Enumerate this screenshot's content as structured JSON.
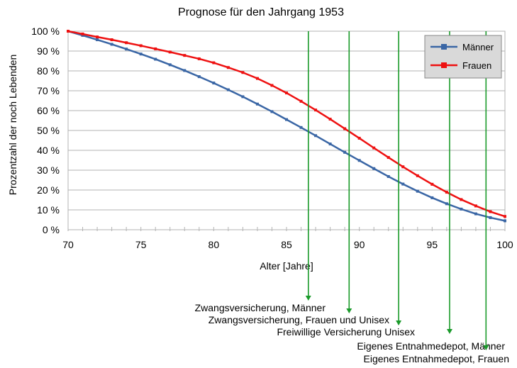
{
  "chart_data": {
    "type": "line",
    "title": "Prognose für den Jahrgang 1953",
    "xlabel": "Alter [Jahre]",
    "ylabel": "Prozentzahl der noch Lebenden",
    "xlim": [
      70,
      100
    ],
    "ylim": [
      0,
      100
    ],
    "x_ticks": [
      70,
      75,
      80,
      85,
      90,
      95,
      100
    ],
    "y_ticks": [
      "0 %",
      "10 %",
      "20 %",
      "30 %",
      "40 %",
      "50 %",
      "60 %",
      "70 %",
      "80 %",
      "90 %",
      "100 %"
    ],
    "legend_position": "top-right",
    "grid": true,
    "x": [
      70,
      71,
      72,
      73,
      74,
      75,
      76,
      77,
      78,
      79,
      80,
      81,
      82,
      83,
      84,
      85,
      86,
      87,
      88,
      89,
      90,
      91,
      92,
      93,
      94,
      95,
      96,
      97,
      98,
      99,
      100
    ],
    "series": [
      {
        "name": "Männer",
        "color": "#3a66a5",
        "values": [
          100,
          97.9,
          95.7,
          93.4,
          91,
          88.5,
          85.9,
          83.1,
          80.2,
          77.1,
          73.9,
          70.5,
          67,
          63.3,
          59.5,
          55.5,
          51.5,
          47.4,
          43.2,
          39,
          34.9,
          30.8,
          26.8,
          23,
          19.4,
          16.1,
          13.1,
          10.4,
          8,
          6.1,
          4.5
        ]
      },
      {
        "name": "Frauen",
        "color": "#ee1111",
        "values": [
          100,
          98.6,
          97.1,
          95.7,
          94.2,
          92.7,
          91.1,
          89.5,
          87.8,
          86.1,
          84.1,
          81.7,
          79.2,
          76.2,
          72.7,
          68.9,
          64.7,
          60.3,
          55.7,
          50.9,
          46.1,
          41.2,
          36.4,
          31.7,
          27.2,
          22.9,
          18.9,
          15.2,
          12,
          9.1,
          6.7
        ]
      }
    ],
    "annotations": [
      {
        "text": "Zwangsversicherung, Männer",
        "x": 86.5
      },
      {
        "text": "Zwangsversicherung, Frauen und Unisex",
        "x": 89.3
      },
      {
        "text": "Freiwillige Versicherung Unisex",
        "x": 92.7
      },
      {
        "text": "Eigenes Entnahmedepot, Männer",
        "x": 96.2
      },
      {
        "text": "Eigenes Entnahmedepot, Frauen",
        "x": 98.7
      }
    ],
    "annotation_color": "#1a9a2a"
  }
}
